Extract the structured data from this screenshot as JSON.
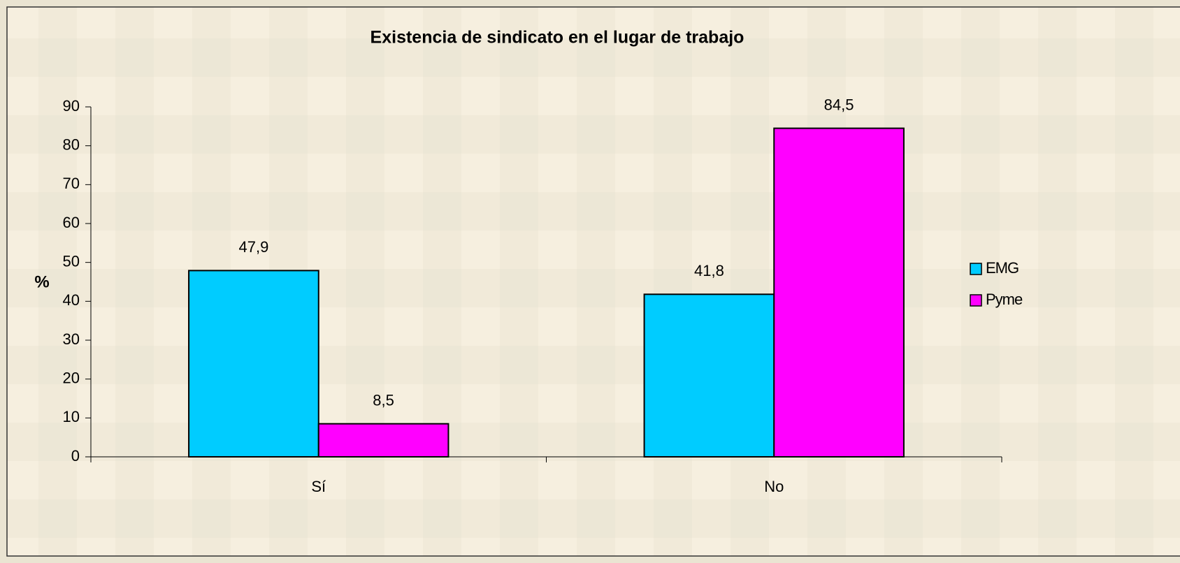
{
  "chart_data": {
    "type": "bar",
    "title": "Existencia de sindicato en el lugar de trabajo",
    "y_label": "%",
    "categories": [
      "Sí",
      "No"
    ],
    "series": [
      {
        "name": "EMG",
        "color": "#00ccff",
        "values": [
          47.9,
          41.8
        ],
        "value_labels": [
          "47,9",
          "41,8"
        ]
      },
      {
        "name": "Pyme",
        "color": "#ff00ff",
        "values": [
          8.5,
          84.5
        ],
        "value_labels": [
          "8,5",
          "84,5"
        ]
      }
    ],
    "ylim": [
      0,
      90
    ],
    "yticks": [
      0,
      10,
      20,
      30,
      40,
      50,
      60,
      70,
      80,
      90
    ],
    "legend": "right"
  }
}
